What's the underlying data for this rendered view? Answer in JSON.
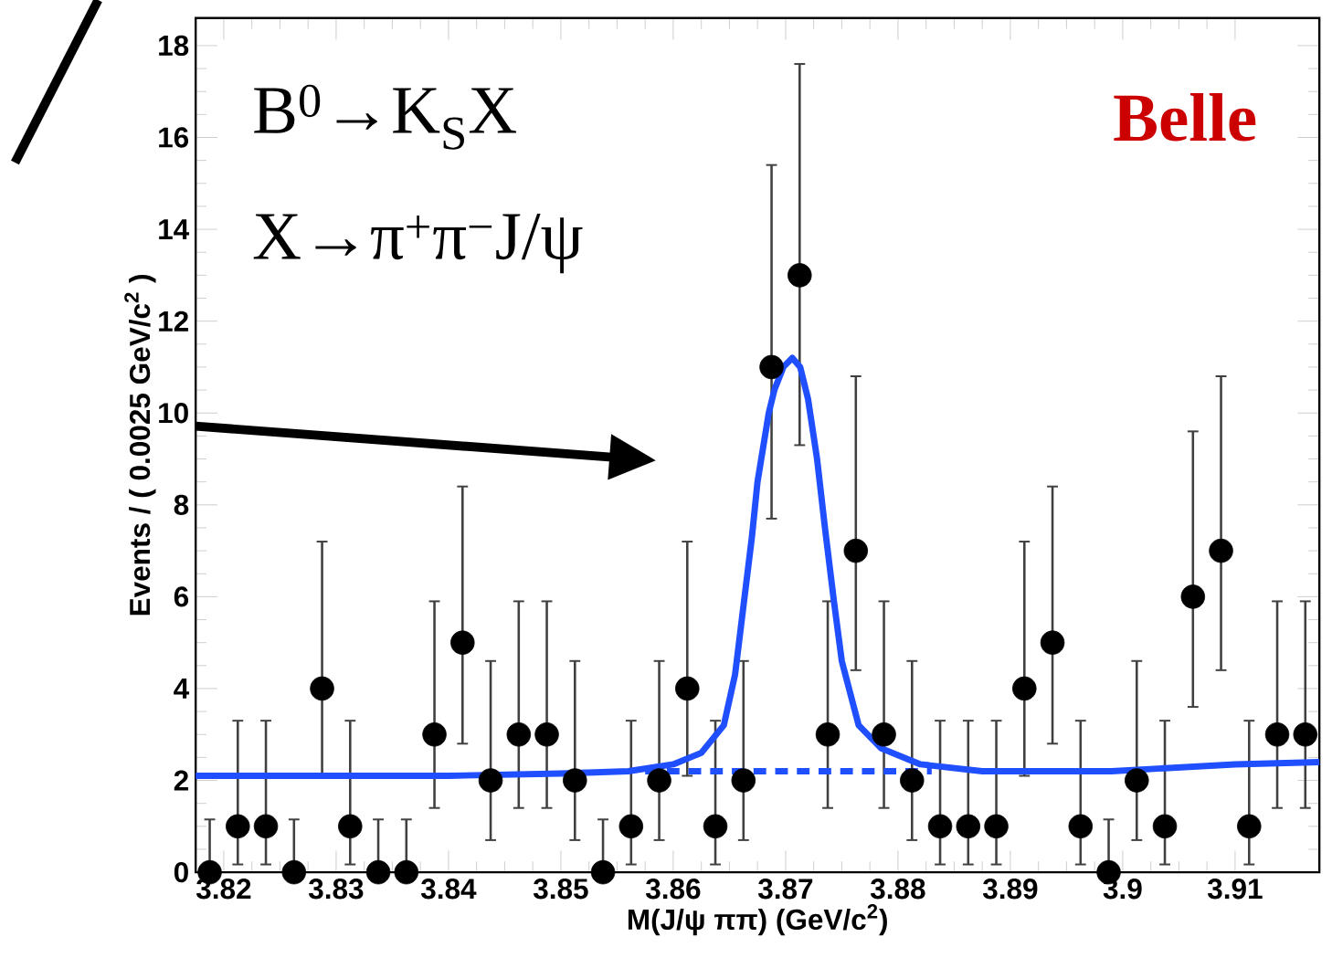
{
  "chart_data": {
    "type": "scatter",
    "xlabel": "M(J/ψ ππ) (GeV/c$^{2}$)",
    "ylabel": "Events / ( 0.0025 GeV/c$^{2}$ )",
    "annotations": [
      "B$^{0}$→K$_{S}$X",
      "X→π$^{+}$π$^{−}$J/ψ",
      "Belle"
    ],
    "xlim": [
      3.8175,
      3.9175
    ],
    "xticks": [
      3.82,
      3.83,
      3.84,
      3.85,
      3.86,
      3.87,
      3.88,
      3.89,
      3.9,
      3.91
    ],
    "ylim": [
      0,
      18.6
    ],
    "yticks": [
      0,
      2,
      4,
      6,
      8,
      10,
      12,
      14,
      16,
      18
    ],
    "series": [
      {
        "marker": "circle",
        "color": "#000000",
        "x": [
          3.81875,
          3.82125,
          3.82375,
          3.82625,
          3.82875,
          3.83125,
          3.83375,
          3.83625,
          3.83875,
          3.84125,
          3.84375,
          3.84625,
          3.84875,
          3.85125,
          3.85375,
          3.85625,
          3.85875,
          3.86125,
          3.86375,
          3.86625,
          3.86875,
          3.87125,
          3.87375,
          3.87625,
          3.87875,
          3.88125,
          3.88375,
          3.88625,
          3.88875,
          3.89125,
          3.89375,
          3.89625,
          3.89875,
          3.90125,
          3.90375,
          3.90625,
          3.90875,
          3.91125,
          3.91375,
          3.91625
        ],
        "values": [
          0,
          1,
          1,
          0,
          4,
          1,
          0,
          0,
          3,
          5,
          2,
          3,
          3,
          2,
          0,
          1,
          2,
          4,
          1,
          2,
          11,
          13,
          3,
          7,
          3,
          2,
          1,
          1,
          1,
          4,
          5,
          1,
          0,
          2,
          1,
          6,
          7,
          1,
          3,
          3
        ],
        "errors": [
          [
            0,
            1.15
          ],
          [
            0.17,
            3.3
          ],
          [
            0.17,
            3.3
          ],
          [
            0,
            1.15
          ],
          [
            2.1,
            7.2
          ],
          [
            0.17,
            3.3
          ],
          [
            0,
            1.15
          ],
          [
            0,
            1.15
          ],
          [
            1.4,
            5.9
          ],
          [
            2.8,
            8.4
          ],
          [
            0.7,
            4.6
          ],
          [
            1.4,
            5.9
          ],
          [
            1.4,
            5.9
          ],
          [
            0.7,
            4.6
          ],
          [
            0,
            1.15
          ],
          [
            0.17,
            3.3
          ],
          [
            0.7,
            4.6
          ],
          [
            2.1,
            7.2
          ],
          [
            0.17,
            3.3
          ],
          [
            0.7,
            4.6
          ],
          [
            7.7,
            15.4
          ],
          [
            9.3,
            17.6
          ],
          [
            1.4,
            5.9
          ],
          [
            4.4,
            10.8
          ],
          [
            1.4,
            5.9
          ],
          [
            0.7,
            4.6
          ],
          [
            0.17,
            3.3
          ],
          [
            0.17,
            3.3
          ],
          [
            0.17,
            3.3
          ],
          [
            2.1,
            7.2
          ],
          [
            2.8,
            8.4
          ],
          [
            0.17,
            3.3
          ],
          [
            0,
            1.15
          ],
          [
            0.7,
            4.6
          ],
          [
            0.17,
            3.3
          ],
          [
            3.6,
            9.6
          ],
          [
            4.4,
            10.8
          ],
          [
            0.17,
            3.3
          ],
          [
            1.4,
            5.9
          ],
          [
            1.4,
            5.9
          ]
        ]
      },
      {
        "type": "line",
        "marker": "none",
        "line_style": "solid",
        "color": "#1f4fff",
        "x": [
          3.8175,
          3.84,
          3.85,
          3.856,
          3.86,
          3.8625,
          3.8645,
          3.8655,
          3.866,
          3.867,
          3.8675,
          3.8685,
          3.869,
          3.8698,
          3.8706,
          3.8713,
          3.872,
          3.8728,
          3.8735,
          3.8743,
          3.875,
          3.8765,
          3.8785,
          3.882,
          3.8875,
          3.899,
          3.91,
          3.9175
        ],
        "values": [
          2.1,
          2.1,
          2.15,
          2.2,
          2.35,
          2.6,
          3.2,
          4.3,
          5.3,
          7.3,
          8.5,
          10.0,
          10.5,
          11.0,
          11.2,
          11.0,
          10.3,
          9.0,
          7.5,
          5.9,
          4.6,
          3.2,
          2.7,
          2.35,
          2.2,
          2.2,
          2.35,
          2.4
        ]
      },
      {
        "type": "line",
        "marker": "none",
        "line_style": "dashed",
        "color": "#1f4fff",
        "x": [
          3.8575,
          3.883
        ],
        "values": [
          2.2,
          2.2
        ]
      }
    ]
  }
}
